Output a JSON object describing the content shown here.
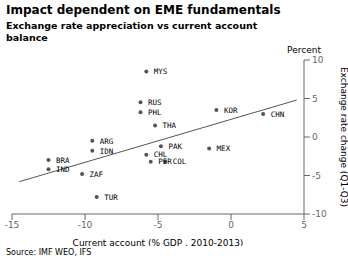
{
  "chart_data": {
    "type": "scatter",
    "title": "Impact dependent on EME fundamentals",
    "subtitle": "Exchange rate appreciation vs current account\nbalance",
    "xlabel": "Current account (% GDP , 2010-2013)",
    "ylabel": "Exchange rate change (Q1-Q3)",
    "annotations": [
      "Percent",
      "Source: IMF WEO, IFS"
    ],
    "xlim": [
      -15,
      5
    ],
    "ylim": [
      -10,
      10
    ],
    "xticks": [
      -15,
      -10,
      -5,
      0,
      5
    ],
    "yticks": [
      -10,
      -5,
      0,
      5,
      10
    ],
    "grid": false,
    "series": [
      {
        "type": "scatter",
        "color": "#555555",
        "x": [
          -12.5,
          -12.5,
          -9.5,
          -9.5,
          -10.2,
          -9.2,
          -6.2,
          -6.2,
          -5.8,
          -5.5,
          -4.5,
          -4.8,
          -5.2,
          -5.8,
          -1.5,
          -1.0,
          2.2
        ],
        "values": [
          -3.0,
          -4.2,
          -0.5,
          -1.8,
          -4.8,
          -7.8,
          4.5,
          3.2,
          -2.3,
          -3.2,
          -3.2,
          -1.2,
          1.5,
          8.5,
          -1.5,
          3.5,
          3.0
        ],
        "labels": [
          "BRA",
          "IND",
          "ARG",
          "IDN",
          "ZAF",
          "TUR",
          "RUS",
          "PHL",
          "CHL",
          "PER",
          "COL",
          "PAK",
          "THA",
          "MYS",
          "MEX",
          "KOR",
          "CHN"
        ]
      },
      {
        "type": "line",
        "color": "#555555",
        "x": [
          -14.5,
          4.5
        ],
        "values": [
          -5.8,
          4.8
        ]
      }
    ]
  }
}
